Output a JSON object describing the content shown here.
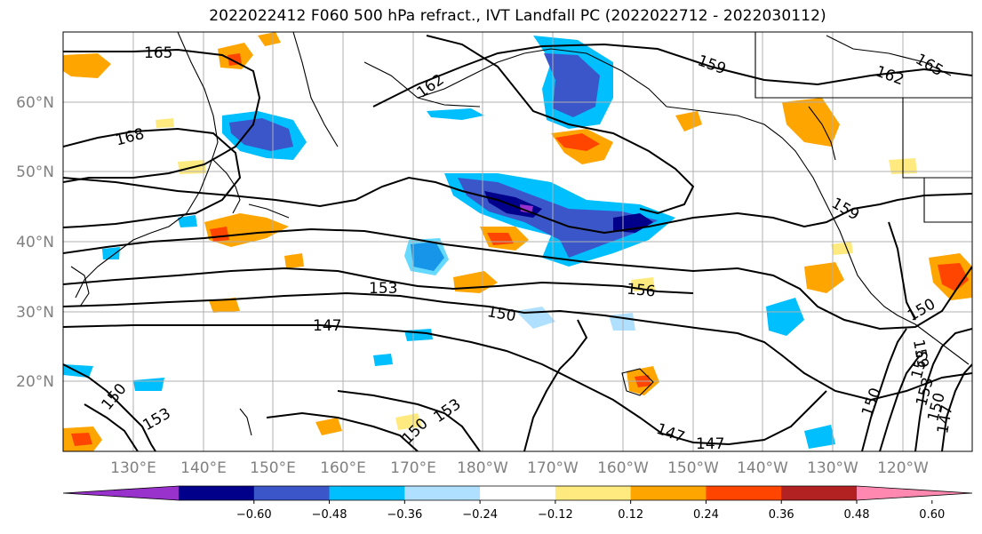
{
  "title": "2022022412 F060 500 hPa refract., IVT Landfall PC (2022022712 - 2022030112)",
  "lat_labels": [
    "60°N",
    "50°N",
    "40°N",
    "30°N",
    "20°N"
  ],
  "lon_labels": [
    "130°E",
    "140°E",
    "150°E",
    "160°E",
    "170°E",
    "180°W",
    "170°W",
    "160°W",
    "150°W",
    "140°W",
    "130°W",
    "120°W"
  ],
  "contour_labels": [
    "165",
    "162",
    "159",
    "162",
    "165",
    "168",
    "159",
    "153",
    "156",
    "150",
    "147",
    "150",
    "150",
    "153",
    "150",
    "153",
    "150",
    "153",
    "150",
    "147",
    "147",
    "147",
    "153",
    "159"
  ],
  "colorbar": {
    "colors": [
      "#9932cc",
      "#00008b",
      "#3a56c8",
      "#00bfff",
      "#b0e0ff",
      "#ffffff",
      "#ffea80",
      "#ffa500",
      "#ff4500",
      "#b22222",
      "#ff88b0"
    ],
    "tick_labels": [
      "−0.60",
      "−0.48",
      "−0.36",
      "−0.24",
      "−0.12",
      "0.12",
      "0.24",
      "0.36",
      "0.48",
      "0.60"
    ]
  }
}
